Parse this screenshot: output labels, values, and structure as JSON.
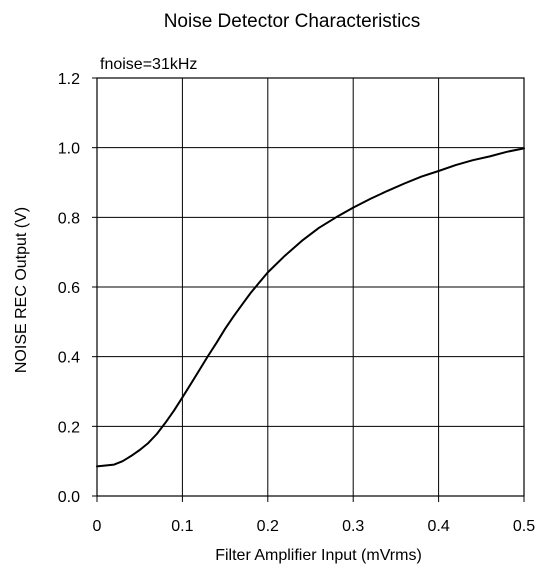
{
  "chart_data": {
    "type": "line",
    "title": "Noise Detector Characteristics",
    "annotation": "fnoise=31kHz",
    "xlabel": "Filter Amplifier Input (mVrms)",
    "ylabel": "NOISE REC Output (V)",
    "xlim": [
      0,
      0.5
    ],
    "ylim": [
      0,
      1.2
    ],
    "x_ticks": [
      "0",
      "0.1",
      "0.2",
      "0.3",
      "0.4",
      "0.5"
    ],
    "y_ticks": [
      "0.0",
      "0.2",
      "0.4",
      "0.6",
      "0.8",
      "1.0",
      "1.2"
    ],
    "grid": true,
    "series": [
      {
        "x": [
          0,
          0.02,
          0.03,
          0.04,
          0.05,
          0.06,
          0.07,
          0.08,
          0.09,
          0.1,
          0.11,
          0.12,
          0.13,
          0.14,
          0.15,
          0.16,
          0.17,
          0.18,
          0.19,
          0.2,
          0.22,
          0.24,
          0.26,
          0.28,
          0.3,
          0.32,
          0.34,
          0.36,
          0.38,
          0.4,
          0.42,
          0.44,
          0.46,
          0.48,
          0.5
        ],
        "values": [
          0.085,
          0.09,
          0.1,
          0.115,
          0.132,
          0.152,
          0.178,
          0.21,
          0.245,
          0.283,
          0.322,
          0.362,
          0.402,
          0.44,
          0.48,
          0.516,
          0.55,
          0.583,
          0.613,
          0.642,
          0.69,
          0.733,
          0.77,
          0.8,
          0.828,
          0.853,
          0.876,
          0.897,
          0.917,
          0.933,
          0.95,
          0.964,
          0.975,
          0.988,
          0.998
        ]
      }
    ]
  }
}
